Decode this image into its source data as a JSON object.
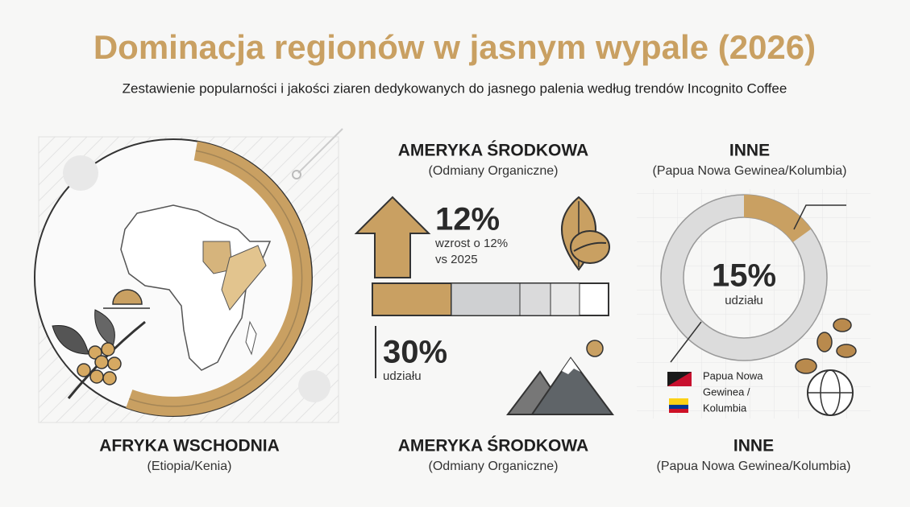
{
  "header": {
    "title": "Dominacja regionów w jasnym wypale (2026)",
    "subtitle": "Zestawienie popularności i jakości ziaren dedykowanych do jasnego palenia według trendów Incognito Coffee"
  },
  "panels": [
    {
      "bottom_label": "AFRYKA WSCHODNIA",
      "bottom_sublabel": "(Etiopia/Kenia)"
    },
    {
      "top_label": "AMERYKA ŚRODKOWA",
      "top_sublabel": "(Odmiany Organiczne)",
      "growth_value": "12%",
      "growth_text": [
        "wzrost o 12%",
        "vs 2025"
      ],
      "share_value": "30%",
      "share_text": "udziału",
      "bottom_label": "AMERYKA ŚRODKOWA",
      "bottom_sublabel": "(Odmiany Organiczne)"
    },
    {
      "top_label": "INNE",
      "top_sublabel": "(Papua Nowa Gewinea/Kolumbia)",
      "share_value": "15%",
      "share_text": "udziału",
      "legend": [
        "Papua Nowa",
        "Gewinea /",
        "Kolumbia"
      ],
      "bottom_label": "INNE",
      "bottom_sublabel": "(Papua Nowa Gewinea/Kolumbia)"
    }
  ]
}
